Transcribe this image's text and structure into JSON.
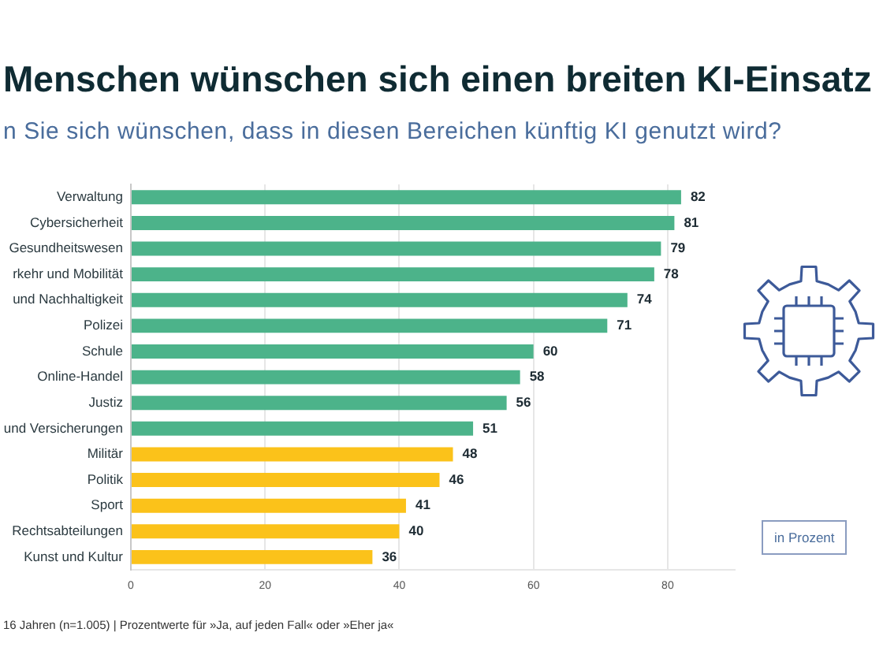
{
  "chart_data": {
    "type": "bar",
    "orientation": "horizontal",
    "title": "Menschen wünschen sich einen breiten KI-Einsatz",
    "subtitle": "n Sie sich wünschen, dass in diesen Bereichen künftig KI genutzt wird?",
    "categories": [
      "Verwaltung",
      "Cybersicherheit",
      "Gesundheitswesen",
      "rkehr und Mobilität",
      "und Nachhaltigkeit",
      "Polizei",
      "Schule",
      "Online-Handel",
      "Justiz",
      "und Versicherungen",
      "Militär",
      "Politik",
      "Sport",
      "Rechtsabteilungen",
      "Kunst und Kultur"
    ],
    "values": [
      82,
      81,
      79,
      78,
      74,
      71,
      60,
      58,
      56,
      51,
      48,
      46,
      41,
      40,
      36
    ],
    "colors": [
      "#4cb38a",
      "#4cb38a",
      "#4cb38a",
      "#4cb38a",
      "#4cb38a",
      "#4cb38a",
      "#4cb38a",
      "#4cb38a",
      "#4cb38a",
      "#4cb38a",
      "#fbc21a",
      "#fbc21a",
      "#fbc21a",
      "#fbc21a",
      "#fbc21a"
    ],
    "xlim": [
      0,
      90
    ],
    "xticks": [
      0,
      20,
      40,
      60,
      80
    ],
    "grid": "x",
    "data_labels": true,
    "annotations": [
      "in Prozent",
      "16 Jahren (n=1.005) | Prozentwerte für »Ja, auf jeden Fall« oder »Eher ja«"
    ]
  }
}
